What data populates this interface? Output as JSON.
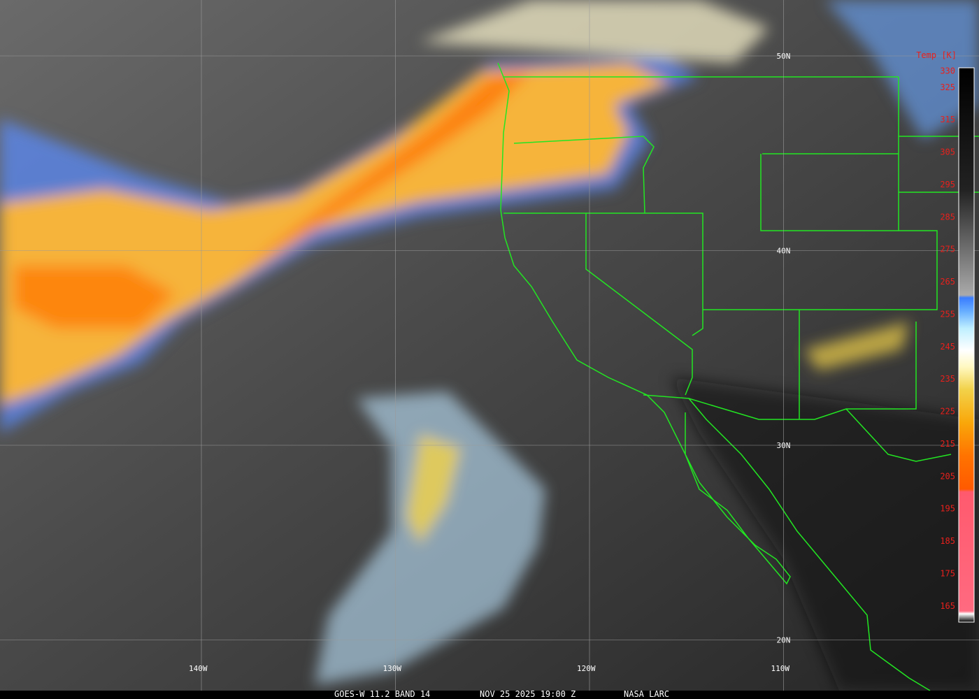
{
  "map": {
    "lat_labels": [
      {
        "value": 50,
        "label": "50N"
      },
      {
        "value": 40,
        "label": "40N"
      },
      {
        "value": 30,
        "label": "30N"
      },
      {
        "value": 20,
        "label": "20N"
      }
    ],
    "lon_labels": [
      {
        "value": 140,
        "label": "140W"
      },
      {
        "value": 130,
        "label": "130W"
      },
      {
        "value": 120,
        "label": "120W"
      },
      {
        "value": 110,
        "label": "110W"
      }
    ],
    "colorbar": {
      "title": "Temp [K]",
      "range": [
        160,
        331
      ],
      "ticks": [
        330,
        325,
        315,
        305,
        295,
        285,
        275,
        265,
        255,
        245,
        235,
        225,
        215,
        205,
        195,
        185,
        175,
        165
      ]
    },
    "footer": {
      "satellite": "GOES-W 11.2 BAND 14",
      "time": "NOV 25 2025 19:00 Z",
      "source": "NASA LARC"
    }
  }
}
